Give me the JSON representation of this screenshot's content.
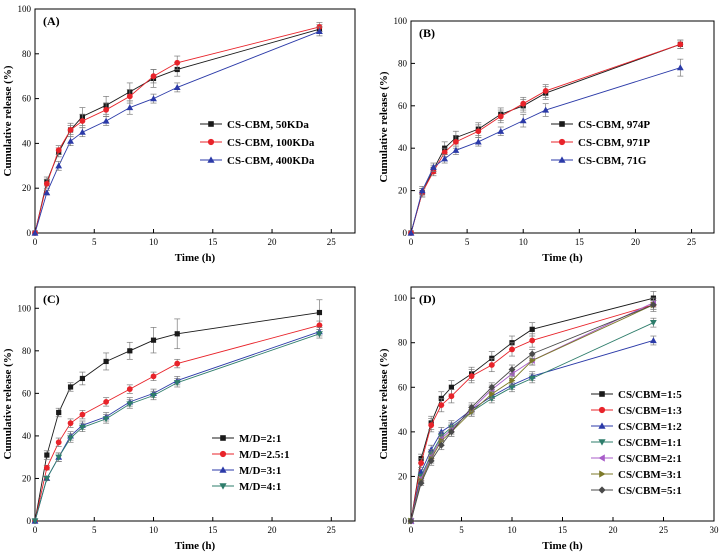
{
  "colors": {
    "black": "#1a1a1a",
    "red": "#e8232a",
    "blue": "#2b3aa8",
    "teal": "#2e7d6b",
    "violet": "#a85cc9",
    "olive": "#7d7a2a",
    "darkgray": "#4a4a4a"
  },
  "chart_data": [
    {
      "type": "line",
      "panel_label": "(A)",
      "xlabel": "Time (h)",
      "ylabel": "Cumulative release (%)",
      "xlim": [
        0,
        27
      ],
      "ylim": [
        0,
        100
      ],
      "xticks": [
        0,
        5,
        10,
        15,
        20,
        25
      ],
      "yticks": [
        0,
        20,
        40,
        60,
        80,
        100
      ],
      "legend_position": "center-right",
      "x": [
        0,
        1,
        2,
        3,
        4,
        6,
        8,
        10,
        12,
        24
      ],
      "series": [
        {
          "name": "CS-CBM, 50KDa",
          "color": "black",
          "marker": "square",
          "values": [
            0,
            23,
            36,
            46,
            52,
            57,
            63,
            69,
            73,
            91
          ],
          "errors": [
            0,
            2,
            2,
            3,
            4,
            4,
            4,
            4,
            3,
            2
          ]
        },
        {
          "name": "CS-CBM, 100KDa",
          "color": "red",
          "marker": "circle",
          "values": [
            0,
            22,
            37,
            46,
            50,
            55,
            61,
            70,
            76,
            92
          ],
          "errors": [
            0,
            2,
            2,
            2,
            3,
            3,
            3,
            3,
            3,
            2
          ]
        },
        {
          "name": "CS-CBM, 400KDa",
          "color": "blue",
          "marker": "triangle",
          "values": [
            0,
            18,
            30,
            41,
            45,
            50,
            56,
            60,
            65,
            90
          ],
          "errors": [
            0,
            1,
            2,
            2,
            2,
            2,
            3,
            2,
            2,
            2
          ]
        }
      ]
    },
    {
      "type": "line",
      "panel_label": "(B)",
      "xlabel": "Time (h)",
      "ylabel": "Cumulative release (%)",
      "xlim": [
        0,
        27
      ],
      "ylim": [
        0,
        100
      ],
      "xticks": [
        0,
        5,
        10,
        15,
        20,
        25
      ],
      "yticks": [
        0,
        20,
        40,
        60,
        80,
        100
      ],
      "legend_position": "center-right",
      "x": [
        0,
        1,
        2,
        3,
        4,
        6,
        8,
        10,
        12,
        24
      ],
      "series": [
        {
          "name": "CS-CBM, 974P",
          "color": "black",
          "marker": "square",
          "values": [
            0,
            19,
            30,
            40,
            45,
            49,
            56,
            60,
            66,
            89
          ],
          "errors": [
            0,
            2,
            2,
            3,
            3,
            3,
            3,
            3,
            3,
            2
          ]
        },
        {
          "name": "CS-CBM, 971P",
          "color": "red",
          "marker": "circle",
          "values": [
            0,
            19,
            29,
            38,
            43,
            48,
            55,
            61,
            67,
            89
          ],
          "errors": [
            0,
            2,
            2,
            2,
            3,
            3,
            3,
            3,
            3,
            2
          ]
        },
        {
          "name": "CS-CBM, 71G",
          "color": "blue",
          "marker": "triangle",
          "values": [
            0,
            20,
            31,
            35,
            39,
            43,
            48,
            53,
            58,
            78
          ],
          "errors": [
            0,
            2,
            2,
            2,
            2,
            2,
            2,
            3,
            3,
            4
          ]
        }
      ]
    },
    {
      "type": "line",
      "panel_label": "(C)",
      "xlabel": "Time (h)",
      "ylabel": "Cumulative release (%)",
      "xlim": [
        0,
        27
      ],
      "ylim": [
        0,
        110
      ],
      "xticks": [
        0,
        5,
        10,
        15,
        20,
        25
      ],
      "yticks": [
        0,
        20,
        40,
        60,
        80,
        100
      ],
      "legend_position": "bottom-right",
      "x": [
        0,
        1,
        2,
        3,
        4,
        6,
        8,
        10,
        12,
        24
      ],
      "series": [
        {
          "name": "M/D=2:1",
          "color": "black",
          "marker": "square",
          "values": [
            0,
            31,
            51,
            63,
            67,
            75,
            80,
            85,
            88,
            98
          ],
          "errors": [
            0,
            2,
            2,
            2,
            3,
            4,
            4,
            6,
            7,
            6
          ]
        },
        {
          "name": "M/D=2.5:1",
          "color": "red",
          "marker": "circle",
          "values": [
            0,
            25,
            37,
            46,
            50,
            56,
            62,
            68,
            74,
            92
          ],
          "errors": [
            0,
            1,
            2,
            2,
            2,
            2,
            2,
            2,
            2,
            2
          ]
        },
        {
          "name": "M/D=3:1",
          "color": "blue",
          "marker": "triangle",
          "values": [
            0,
            20,
            30,
            40,
            45,
            49,
            56,
            60,
            66,
            89
          ],
          "errors": [
            0,
            1,
            2,
            2,
            2,
            2,
            2,
            2,
            2,
            2
          ]
        },
        {
          "name": "M/D=4:1",
          "color": "teal",
          "marker": "triangle-down",
          "values": [
            0,
            20,
            30,
            39,
            44,
            48,
            55,
            59,
            65,
            88
          ],
          "errors": [
            0,
            1,
            2,
            2,
            2,
            2,
            2,
            2,
            2,
            2
          ]
        }
      ]
    },
    {
      "type": "line",
      "panel_label": "(D)",
      "xlabel": "Time (h)",
      "ylabel": "Cumulative release (%)",
      "xlim": [
        0,
        30
      ],
      "ylim": [
        0,
        105
      ],
      "xticks": [
        0,
        5,
        10,
        15,
        20,
        25,
        30
      ],
      "yticks": [
        0,
        20,
        40,
        60,
        80,
        100
      ],
      "legend_position": "bottom-right",
      "x": [
        0,
        1,
        2,
        3,
        4,
        6,
        8,
        10,
        12,
        24
      ],
      "series": [
        {
          "name": "CS/CBM=1:5",
          "color": "black",
          "marker": "square",
          "values": [
            0,
            28,
            44,
            55,
            60,
            66,
            73,
            80,
            86,
            100
          ],
          "errors": [
            0,
            2,
            3,
            3,
            3,
            3,
            3,
            3,
            3,
            3
          ]
        },
        {
          "name": "CS/CBM=1:3",
          "color": "red",
          "marker": "circle",
          "values": [
            0,
            26,
            43,
            52,
            56,
            65,
            70,
            77,
            81,
            97
          ],
          "errors": [
            0,
            2,
            3,
            3,
            3,
            3,
            3,
            3,
            3,
            3
          ]
        },
        {
          "name": "CS/CBM=1:2",
          "color": "blue",
          "marker": "triangle",
          "values": [
            0,
            22,
            32,
            40,
            43,
            50,
            56,
            61,
            65,
            81
          ],
          "errors": [
            0,
            1,
            2,
            2,
            2,
            2,
            2,
            2,
            2,
            2
          ]
        },
        {
          "name": "CS/CBM=1:1",
          "color": "teal",
          "marker": "triangle-down",
          "values": [
            0,
            20,
            30,
            38,
            42,
            49,
            55,
            60,
            64,
            89
          ],
          "errors": [
            0,
            1,
            2,
            2,
            2,
            2,
            2,
            2,
            2,
            2
          ]
        },
        {
          "name": "CS/CBM=2:1",
          "color": "violet",
          "marker": "triangle-left",
          "values": [
            0,
            19,
            29,
            37,
            41,
            50,
            59,
            66,
            72,
            98
          ],
          "errors": [
            0,
            1,
            2,
            2,
            2,
            2,
            2,
            2,
            2,
            2
          ]
        },
        {
          "name": "CS/CBM=3:1",
          "color": "olive",
          "marker": "triangle-right",
          "values": [
            0,
            18,
            28,
            36,
            40,
            49,
            57,
            63,
            72,
            97
          ],
          "errors": [
            0,
            1,
            2,
            2,
            2,
            2,
            2,
            2,
            2,
            2
          ]
        },
        {
          "name": "CS/CBM=5:1",
          "color": "darkgray",
          "marker": "diamond",
          "values": [
            0,
            17,
            27,
            34,
            40,
            51,
            60,
            68,
            75,
            97
          ],
          "errors": [
            0,
            1,
            2,
            2,
            2,
            2,
            2,
            2,
            2,
            2
          ]
        }
      ]
    }
  ]
}
